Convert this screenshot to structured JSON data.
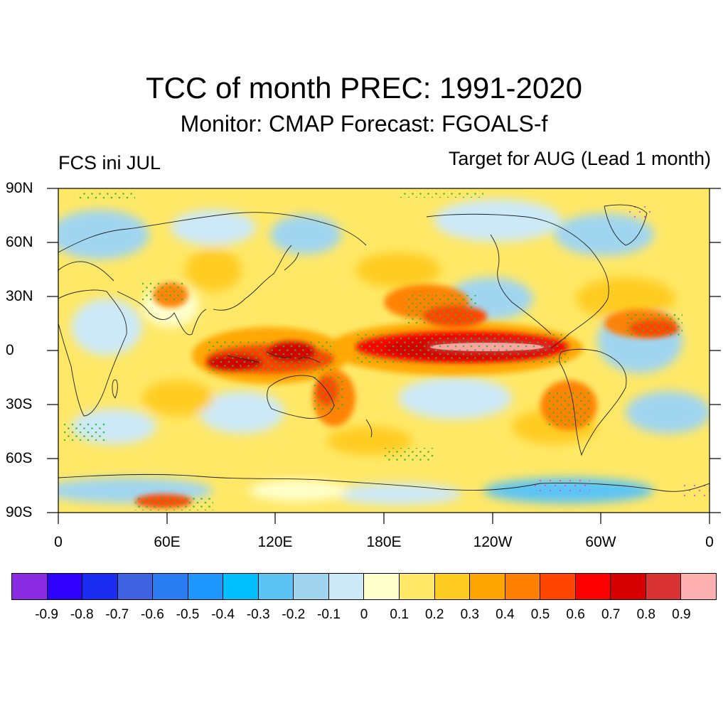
{
  "title": "TCC of month PREC: 1991-2020",
  "subtitle": "Monitor: CMAP   Forecast: FGOALS-f",
  "left_label": "FCS ini JUL",
  "right_label": "Target for AUG (Lead 1 month)",
  "lat_labels": [
    "90N",
    "60N",
    "30N",
    "0",
    "30S",
    "60S",
    "90S"
  ],
  "lon_labels": [
    "0",
    "60E",
    "120E",
    "180E",
    "120W",
    "60W",
    "0"
  ],
  "colorbar": {
    "colors": [
      "#8a2be2",
      "#3000ff",
      "#1a2cf0",
      "#3e62e0",
      "#2a7df0",
      "#1e96ff",
      "#00bfff",
      "#5cc4f5",
      "#a0d5f0",
      "#cce9f8",
      "#ffffcc",
      "#ffe866",
      "#ffcc22",
      "#ffa500",
      "#ff7f00",
      "#ff4500",
      "#ff0000",
      "#d60000",
      "#d83232",
      "#ffb0b0"
    ],
    "labels": [
      "-0.9",
      "-0.8",
      "-0.7",
      "-0.6",
      "-0.5",
      "-0.4",
      "-0.3",
      "-0.2",
      "-0.1",
      "0",
      "0.1",
      "0.2",
      "0.3",
      "0.4",
      "0.5",
      "0.6",
      "0.7",
      "0.8",
      "0.9"
    ]
  }
}
